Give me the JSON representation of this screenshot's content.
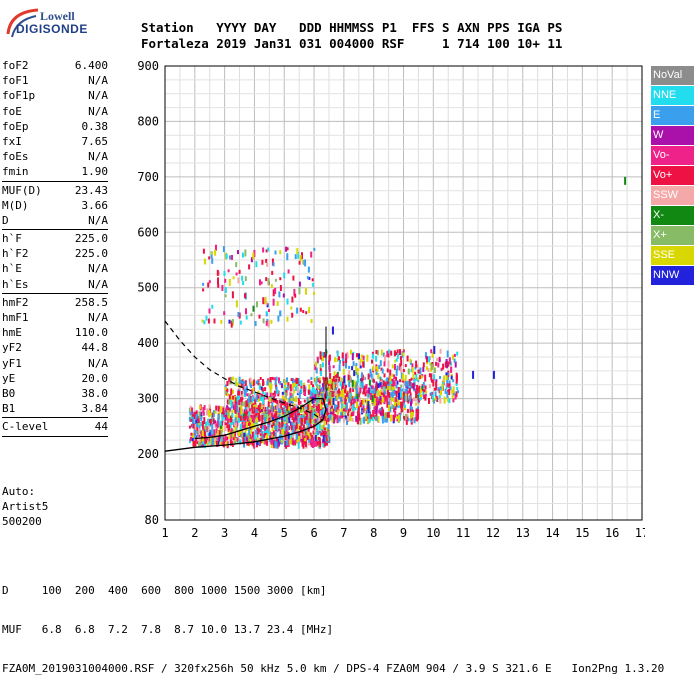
{
  "brand": {
    "line1": "Lowell",
    "line2": "DIGISONDE"
  },
  "header": {
    "line1": "Station   YYYY DAY   DDD HHMMSS P1  FFS S AXN PPS IGA PS",
    "line2": "Fortaleza 2019 Jan31 031 004000 RSF     1 714 100 10+ 11"
  },
  "params_group1": [
    {
      "label": "foF2",
      "value": "6.400"
    },
    {
      "label": "foF1",
      "value": "N/A"
    },
    {
      "label": "foF1p",
      "value": "N/A"
    },
    {
      "label": "foE",
      "value": "N/A"
    },
    {
      "label": "foEp",
      "value": "0.38"
    },
    {
      "label": "fxI",
      "value": "7.65"
    },
    {
      "label": "foEs",
      "value": "N/A"
    },
    {
      "label": "fmin",
      "value": "1.90"
    }
  ],
  "params_group2": [
    {
      "label": "MUF(D)",
      "value": "23.43"
    },
    {
      "label": "M(D)",
      "value": "3.66"
    },
    {
      "label": "D",
      "value": "N/A"
    }
  ],
  "params_group3": [
    {
      "label": "h`F",
      "value": "225.0"
    },
    {
      "label": "h`F2",
      "value": "225.0"
    },
    {
      "label": "h`E",
      "value": "N/A"
    },
    {
      "label": "h`Es",
      "value": "N/A"
    }
  ],
  "params_group4": [
    {
      "label": "hmF2",
      "value": "258.5"
    },
    {
      "label": "hmF1",
      "value": "N/A"
    },
    {
      "label": "hmE",
      "value": "110.0"
    },
    {
      "label": "yF2",
      "value": "44.8"
    },
    {
      "label": "yF1",
      "value": "N/A"
    },
    {
      "label": "yE",
      "value": "20.0"
    },
    {
      "label": "B0",
      "value": "38.0"
    },
    {
      "label": "B1",
      "value": "3.84"
    }
  ],
  "clevel": {
    "label": "C-level",
    "value": "44"
  },
  "auto": {
    "l1": "Auto:",
    "l2": "Artist5",
    "l3": "500200"
  },
  "legend": [
    {
      "label": "NoVal",
      "color": "#8c8c8c"
    },
    {
      "label": "NNE",
      "color": "#22ddee"
    },
    {
      "label": "E",
      "color": "#3aa0ee"
    },
    {
      "label": "W",
      "color": "#aa10aa"
    },
    {
      "label": "Vo-",
      "color": "#ee2288"
    },
    {
      "label": "Vo+",
      "color": "#ee1144"
    },
    {
      "label": "SSW",
      "color": "#f4a8a8"
    },
    {
      "label": "X-",
      "color": "#118811"
    },
    {
      "label": "X+",
      "color": "#88bb66"
    },
    {
      "label": "SSE",
      "color": "#d8d800"
    },
    {
      "label": "NNW",
      "color": "#2222dd"
    }
  ],
  "footer": {
    "l1": "D     100  200  400  600  800 1000 1500 3000 [km]",
    "l2": "MUF   6.8  6.8  7.2  7.8  8.7 10.0 13.7 23.4 [MHz]",
    "l3": "FZA0M_2019031004000.RSF / 320fx256h 50 kHz 5.0 km / DPS-4 FZA0M 904 / 3.9 S 321.6 E   Ion2Png 1.3.20"
  },
  "chart_data": {
    "type": "scatter",
    "xlim": [
      1,
      17
    ],
    "ylim": [
      80,
      900
    ],
    "x_ticks": [
      1,
      2,
      3,
      4,
      5,
      6,
      7,
      8,
      9,
      10,
      11,
      12,
      13,
      14,
      15,
      16,
      17
    ],
    "y_ticks": [
      80,
      200,
      300,
      400,
      500,
      600,
      700,
      800,
      900
    ],
    "grid": true,
    "profile_curve": [
      [
        1.0,
        440
      ],
      [
        1.5,
        405
      ],
      [
        2.0,
        375
      ],
      [
        2.5,
        352
      ],
      [
        3.0,
        336
      ],
      [
        3.5,
        322
      ],
      [
        4.0,
        312
      ],
      [
        4.5,
        302
      ],
      [
        5.0,
        292
      ],
      [
        5.5,
        283
      ],
      [
        6.0,
        272
      ],
      [
        6.3,
        260
      ]
    ],
    "trace_curve": [
      [
        1.0,
        205
      ],
      [
        2.0,
        212
      ],
      [
        3.0,
        216
      ],
      [
        4.0,
        222
      ],
      [
        5.0,
        232
      ],
      [
        5.5,
        240
      ],
      [
        6.0,
        250
      ],
      [
        6.3,
        262
      ],
      [
        6.4,
        280
      ],
      [
        6.3,
        300
      ],
      [
        6.0,
        300
      ],
      [
        5.5,
        282
      ],
      [
        5.0,
        268
      ],
      [
        4.5,
        258
      ],
      [
        4.0,
        250
      ],
      [
        3.5,
        242
      ],
      [
        3.0,
        234
      ],
      [
        2.5,
        230
      ],
      [
        2.0,
        228
      ]
    ],
    "echo_clusters": [
      {
        "x": [
          1.8,
          6.5
        ],
        "y": [
          222,
          290
        ],
        "density": 900
      },
      {
        "x": [
          3.0,
          9.5
        ],
        "y": [
          265,
          340
        ],
        "density": 1000
      },
      {
        "x": [
          6.0,
          10.8
        ],
        "y": [
          300,
          390
        ],
        "density": 500
      },
      {
        "x": [
          2.2,
          6.0
        ],
        "y": [
          440,
          580
        ],
        "density": 150
      }
    ],
    "outliers": [
      [
        16.4,
        700
      ],
      [
        11.3,
        350
      ],
      [
        12.0,
        350
      ],
      [
        10.0,
        395
      ],
      [
        6.6,
        430
      ]
    ]
  }
}
